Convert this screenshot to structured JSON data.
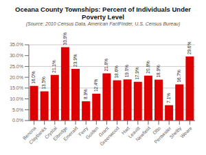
{
  "chart_data": {
    "type": "bar",
    "title": "Oceana County Townships: Percent of Individuals Under Poverty Level",
    "subtitle": "(Source: 2010 Census Data, American FactFinder, U.S. Census Bureau)",
    "categories": [
      "Benona",
      "Claybanks",
      "Crystal",
      "Elbridge",
      "Emerald",
      "Ferry",
      "Golden",
      "Grant",
      "Greenwood",
      "Hart",
      "Leavitt",
      "Newfield",
      "Otto",
      "Pentwater",
      "Shelby",
      "Weare"
    ],
    "values": [
      16.0,
      13.5,
      21.1,
      33.9,
      23.9,
      8.9,
      12.4,
      21.8,
      18.6,
      19.0,
      17.9,
      20.8,
      18.9,
      7.1,
      16.7,
      29.6
    ],
    "value_labels": [
      "16.0%",
      "13.5%",
      "21.1%",
      "33.9%",
      "23.9%",
      "8.9%",
      "12.4%",
      "21.8%",
      "18.6%",
      "19.0%",
      "17.9%",
      "20.8%",
      "18.9%",
      "7.1%",
      "16.7%",
      "29.6%"
    ],
    "data_labels": true,
    "color": "#dd0000",
    "ylim": [
      0,
      35
    ],
    "yticks": [
      {
        "value": 0,
        "label": "0.0%"
      },
      {
        "value": 5,
        "label": "5.0%"
      },
      {
        "value": 10,
        "label": "10.0%"
      },
      {
        "value": 15,
        "label": "15.0%"
      },
      {
        "value": 20,
        "label": "20.0%"
      },
      {
        "value": 25,
        "label": "25.0%"
      },
      {
        "value": 30,
        "label": "30.0%"
      },
      {
        "value": 35,
        "label": "35.0%"
      }
    ],
    "grid": true
  }
}
